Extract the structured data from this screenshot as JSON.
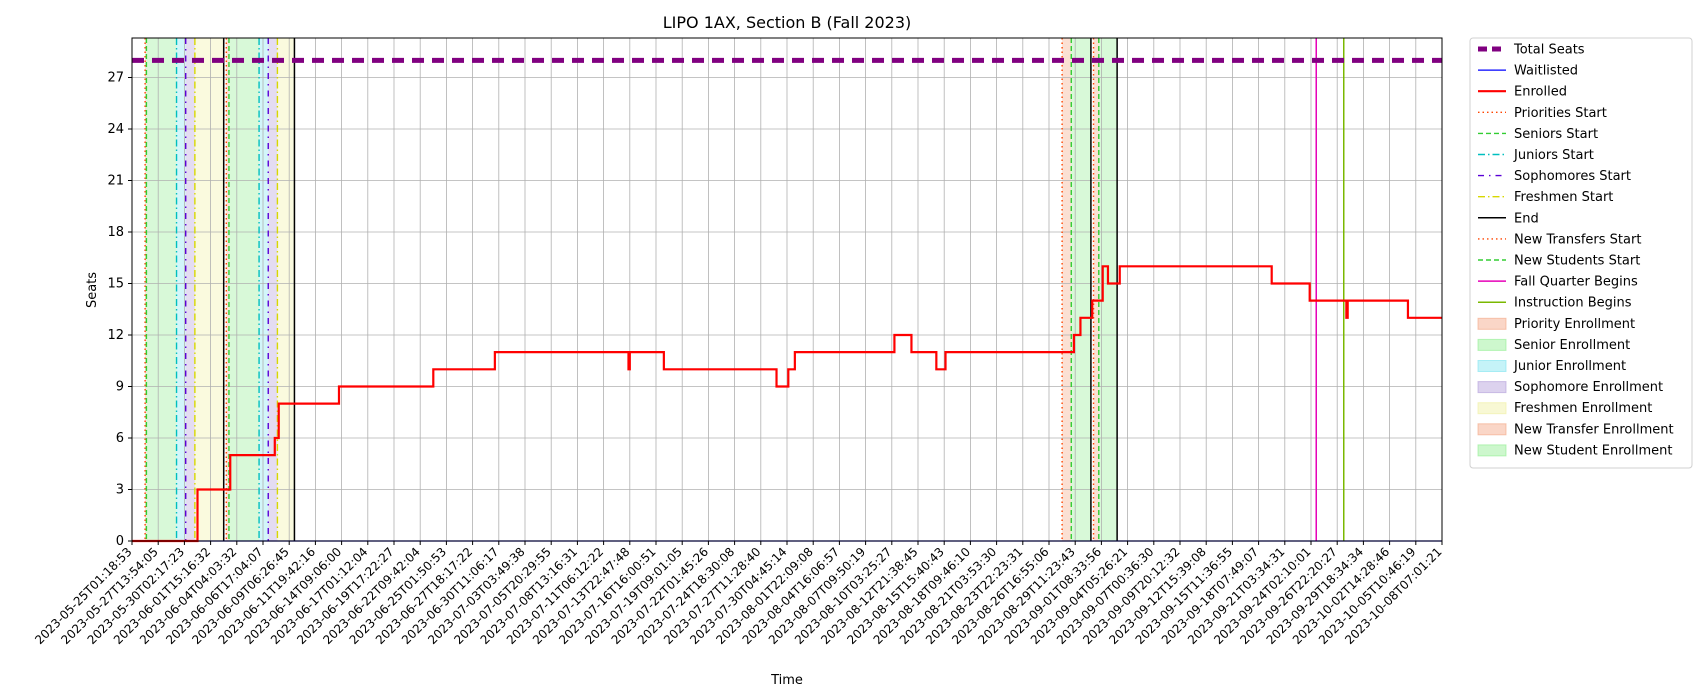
{
  "chart_data": {
    "type": "line",
    "title": "LIPO 1AX, Section B (Fall 2023)",
    "xlabel": "Time",
    "ylabel": "Seats",
    "ylim": [
      0,
      29.3
    ],
    "yticks": [
      0,
      3,
      6,
      9,
      12,
      15,
      18,
      21,
      24,
      27
    ],
    "grid": true,
    "legend_placement": "outside-right",
    "xtick_labels": [
      "2023-05-25T01:18:53",
      "2023-05-27T13:54:05",
      "2023-05-30T02:17:23",
      "2023-06-01T15:16:32",
      "2023-06-04T04:03:32",
      "2023-06-06T17:04:07",
      "2023-06-09T06:26:45",
      "2023-06-11T19:42:16",
      "2023-06-14T09:06:00",
      "2023-06-17T01:12:04",
      "2023-06-19T17:22:27",
      "2023-06-22T09:42:04",
      "2023-06-25T01:50:53",
      "2023-06-27T18:17:22",
      "2023-06-30T11:06:17",
      "2023-07-03T03:49:38",
      "2023-07-05T20:29:55",
      "2023-07-08T13:16:31",
      "2023-07-11T06:12:22",
      "2023-07-13T22:47:48",
      "2023-07-16T16:00:51",
      "2023-07-19T09:01:05",
      "2023-07-22T01:45:26",
      "2023-07-24T18:30:08",
      "2023-07-27T11:28:40",
      "2023-07-30T04:45:14",
      "2023-08-01T22:09:08",
      "2023-08-04T16:06:57",
      "2023-08-07T09:50:19",
      "2023-08-10T03:25:27",
      "2023-08-12T21:38:45",
      "2023-08-15T15:40:43",
      "2023-08-18T09:46:10",
      "2023-08-21T03:53:30",
      "2023-08-23T22:23:31",
      "2023-08-26T16:55:06",
      "2023-08-29T11:23:43",
      "2023-09-01T08:33:56",
      "2023-09-04T05:26:21",
      "2023-09-07T00:36:30",
      "2023-09-09T20:12:32",
      "2023-09-12T15:39:08",
      "2023-09-15T11:36:55",
      "2023-09-18T07:49:07",
      "2023-09-21T03:34:31",
      "2023-09-24T02:10:01",
      "2023-09-26T22:20:27",
      "2023-09-29T18:34:34",
      "2023-10-02T14:28:46",
      "2023-10-05T10:46:19",
      "2023-10-08T07:01:21"
    ],
    "series": [
      {
        "name": "Total Seats",
        "color": "#800080",
        "style": "dashed-thick",
        "points": [
          [
            0,
            28
          ],
          [
            50,
            28
          ]
        ]
      },
      {
        "name": "Waitlisted",
        "color": "#0000ff",
        "style": "solid-thin",
        "points": [
          [
            0,
            0
          ],
          [
            50,
            0
          ]
        ]
      },
      {
        "name": "Enrolled",
        "color": "#ff0000",
        "style": "step",
        "points": [
          [
            0,
            0
          ],
          [
            2.5,
            0
          ],
          [
            2.5,
            3
          ],
          [
            3.75,
            3
          ],
          [
            3.75,
            5
          ],
          [
            5.45,
            5
          ],
          [
            5.45,
            6
          ],
          [
            5.6,
            6
          ],
          [
            5.6,
            8
          ],
          [
            7.9,
            8
          ],
          [
            7.9,
            9
          ],
          [
            11.5,
            9
          ],
          [
            11.5,
            10
          ],
          [
            13.85,
            10
          ],
          [
            13.85,
            11
          ],
          [
            18.95,
            11
          ],
          [
            18.95,
            10
          ],
          [
            19.0,
            10
          ],
          [
            19.0,
            11
          ],
          [
            20.3,
            11
          ],
          [
            20.3,
            10
          ],
          [
            24.6,
            10
          ],
          [
            24.6,
            9
          ],
          [
            25.05,
            9
          ],
          [
            25.05,
            10
          ],
          [
            25.3,
            10
          ],
          [
            25.3,
            11
          ],
          [
            29.1,
            11
          ],
          [
            29.1,
            12
          ],
          [
            29.75,
            12
          ],
          [
            29.75,
            11
          ],
          [
            30.7,
            11
          ],
          [
            30.7,
            10
          ],
          [
            31.05,
            10
          ],
          [
            31.05,
            11
          ],
          [
            35.95,
            11
          ],
          [
            35.95,
            12
          ],
          [
            36.2,
            12
          ],
          [
            36.2,
            13
          ],
          [
            36.65,
            13
          ],
          [
            36.65,
            14
          ],
          [
            37.05,
            14
          ],
          [
            37.05,
            16
          ],
          [
            37.25,
            16
          ],
          [
            37.25,
            15
          ],
          [
            37.7,
            15
          ],
          [
            37.7,
            16
          ],
          [
            43.5,
            16
          ],
          [
            43.5,
            15
          ],
          [
            44.95,
            15
          ],
          [
            44.95,
            14
          ],
          [
            46.35,
            14
          ],
          [
            46.35,
            13
          ],
          [
            46.4,
            13
          ],
          [
            46.4,
            14
          ],
          [
            48.7,
            14
          ],
          [
            48.7,
            13
          ],
          [
            50,
            13
          ]
        ]
      }
    ],
    "vertical_lines": [
      {
        "name": "Priorities Start",
        "color": "#ff4500",
        "style": "dotted",
        "x": [
          0.5,
          3.6,
          35.5,
          36.7
        ]
      },
      {
        "name": "Seniors Start",
        "color": "#32cd32",
        "style": "dashed",
        "x": [
          0.55,
          3.7,
          35.85,
          36.9
        ]
      },
      {
        "name": "Juniors Start",
        "color": "#00bfbf",
        "style": "dashdot",
        "x": [
          1.7,
          4.85
        ]
      },
      {
        "name": "Sophomores Start",
        "color": "#5a00d6",
        "style": "loosely-dashdot",
        "x": [
          2.05,
          5.2
        ]
      },
      {
        "name": "Freshmen Start",
        "color": "#d8d800",
        "style": "dashdot",
        "x": [
          2.4,
          5.55
        ]
      },
      {
        "name": "End",
        "color": "#000000",
        "style": "solid",
        "x": [
          3.5,
          6.2,
          36.6,
          37.6
        ]
      },
      {
        "name": "New Transfers Start",
        "color": "#ff4500",
        "style": "dotted",
        "x": []
      },
      {
        "name": "New Students Start",
        "color": "#32cd32",
        "style": "dashed",
        "x": []
      },
      {
        "name": "Fall Quarter Begins",
        "color": "#e600b8",
        "style": "solid",
        "x": [
          45.2
        ]
      },
      {
        "name": "Instruction Begins",
        "color": "#7ab800",
        "style": "solid",
        "x": [
          46.25
        ]
      }
    ],
    "spans": [
      {
        "name": "Priority Enrollment",
        "color": "#f4a582",
        "ranges": [
          [
            0.5,
            0.55
          ],
          [
            3.6,
            3.7
          ],
          [
            35.5,
            35.85
          ],
          [
            36.7,
            36.9
          ]
        ]
      },
      {
        "name": "Senior Enrollment",
        "color": "#90ee90",
        "ranges": [
          [
            0.55,
            1.7
          ],
          [
            3.7,
            4.85
          ],
          [
            35.85,
            36.6
          ],
          [
            36.9,
            37.6
          ]
        ]
      },
      {
        "name": "Junior Enrollment",
        "color": "#7fe5f0",
        "ranges": [
          [
            1.7,
            2.05
          ],
          [
            4.85,
            5.2
          ]
        ]
      },
      {
        "name": "Sophomore Enrollment",
        "color": "#b19cd9",
        "ranges": [
          [
            2.05,
            2.4
          ],
          [
            5.2,
            5.55
          ]
        ]
      },
      {
        "name": "Freshmen Enrollment",
        "color": "#f0f0a0",
        "ranges": [
          [
            2.4,
            3.5
          ],
          [
            5.55,
            6.2
          ]
        ]
      },
      {
        "name": "New Transfer Enrollment",
        "color": "#f4a582",
        "ranges": []
      },
      {
        "name": "New Student Enrollment",
        "color": "#90ee90",
        "ranges": []
      }
    ],
    "legend_entries": [
      {
        "label": "Total Seats",
        "kind": "line",
        "color": "#800080",
        "style": "dashed-thick"
      },
      {
        "label": "Waitlisted",
        "kind": "line",
        "color": "#0000ff",
        "style": "solid-thin"
      },
      {
        "label": "Enrolled",
        "kind": "line",
        "color": "#ff0000",
        "style": "solid-thick"
      },
      {
        "label": "Priorities Start",
        "kind": "line",
        "color": "#ff4500",
        "style": "dotted"
      },
      {
        "label": "Seniors Start",
        "kind": "line",
        "color": "#32cd32",
        "style": "dashed"
      },
      {
        "label": "Juniors Start",
        "kind": "line",
        "color": "#00bfbf",
        "style": "dashdot"
      },
      {
        "label": "Sophomores Start",
        "kind": "line",
        "color": "#5a00d6",
        "style": "loosely-dashdot"
      },
      {
        "label": "Freshmen Start",
        "kind": "line",
        "color": "#d8d800",
        "style": "dashdot"
      },
      {
        "label": "End",
        "kind": "line",
        "color": "#000000",
        "style": "solid"
      },
      {
        "label": "New Transfers Start",
        "kind": "line",
        "color": "#ff4500",
        "style": "dotted"
      },
      {
        "label": "New Students Start",
        "kind": "line",
        "color": "#32cd32",
        "style": "dashed"
      },
      {
        "label": "Fall Quarter Begins",
        "kind": "line",
        "color": "#e600b8",
        "style": "solid"
      },
      {
        "label": "Instruction Begins",
        "kind": "line",
        "color": "#7ab800",
        "style": "solid"
      },
      {
        "label": "Priority Enrollment",
        "kind": "patch",
        "color": "#f4a582"
      },
      {
        "label": "Senior Enrollment",
        "kind": "patch",
        "color": "#90ee90"
      },
      {
        "label": "Junior Enrollment",
        "kind": "patch",
        "color": "#7fe5f0"
      },
      {
        "label": "Sophomore Enrollment",
        "kind": "patch",
        "color": "#b19cd9"
      },
      {
        "label": "Freshmen Enrollment",
        "kind": "patch",
        "color": "#f0f0a0"
      },
      {
        "label": "New Transfer Enrollment",
        "kind": "patch",
        "color": "#f4a582"
      },
      {
        "label": "New Student Enrollment",
        "kind": "patch",
        "color": "#90ee90"
      }
    ]
  }
}
